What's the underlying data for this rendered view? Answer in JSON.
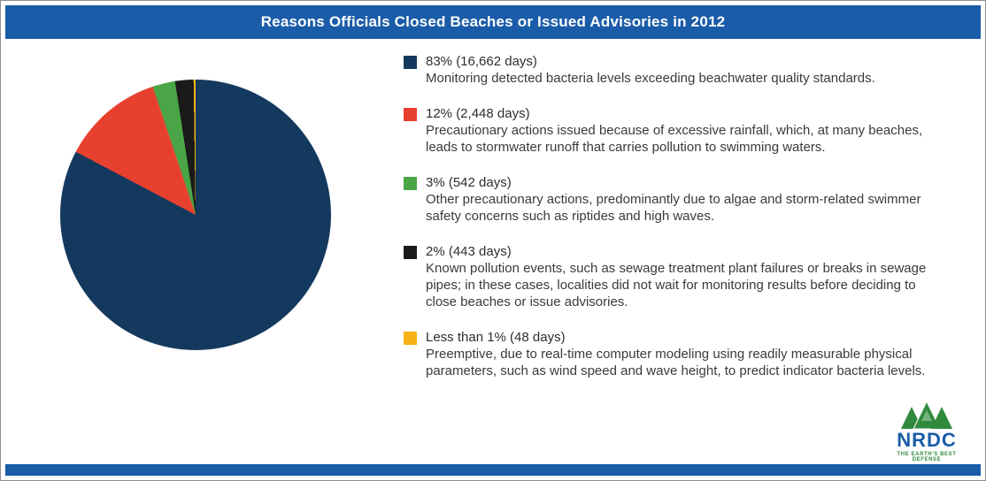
{
  "header": {
    "title": "Reasons Officials Closed Beaches or Issued Advisories in 2012",
    "bar_color": "#1A5CA8"
  },
  "chart_data": {
    "type": "pie",
    "title": "Reasons Officials Closed Beaches or Issued Advisories in 2012",
    "unit": "days",
    "legend_position": "right",
    "start_angle_deg": 0,
    "direction": "clockwise",
    "slices": [
      {
        "label": "83% (16,662 days)",
        "percent_text": "83%",
        "value": 16662,
        "color": "#14395E",
        "description": "Monitoring detected bacteria levels exceeding beachwater quality standards."
      },
      {
        "label": "12% (2,448 days)",
        "percent_text": "12%",
        "value": 2448,
        "color": "#E8402F",
        "description": "Precautionary actions issued because of excessive rainfall, which, at many beaches, leads to stormwater runoff that carries pollution to swimming waters."
      },
      {
        "label": "3% (542 days)",
        "percent_text": "3%",
        "value": 542,
        "color": "#4AA546",
        "description": "Other precautionary actions, predominantly due to algae and storm-related swimmer safety concerns such as riptides and high waves."
      },
      {
        "label": "2% (443 days)",
        "percent_text": "2%",
        "value": 443,
        "color": "#1A1A1A",
        "description": "Known pollution events, such as sewage treatment plant failures or breaks in sewage pipes; in these cases, localities did not wait for monitoring results before deciding to close beaches or issue advisories."
      },
      {
        "label": "Less than 1% (48 days)",
        "percent_text": "Less than 1%",
        "value": 48,
        "color": "#F7B219",
        "description": "Preemptive, due to real-time computer modeling using readily measurable physical parameters, such as wind speed and wave height, to predict indicator bacteria levels."
      }
    ]
  },
  "logo": {
    "name": "NRDC",
    "tagline": "The Earth's Best Defense"
  }
}
